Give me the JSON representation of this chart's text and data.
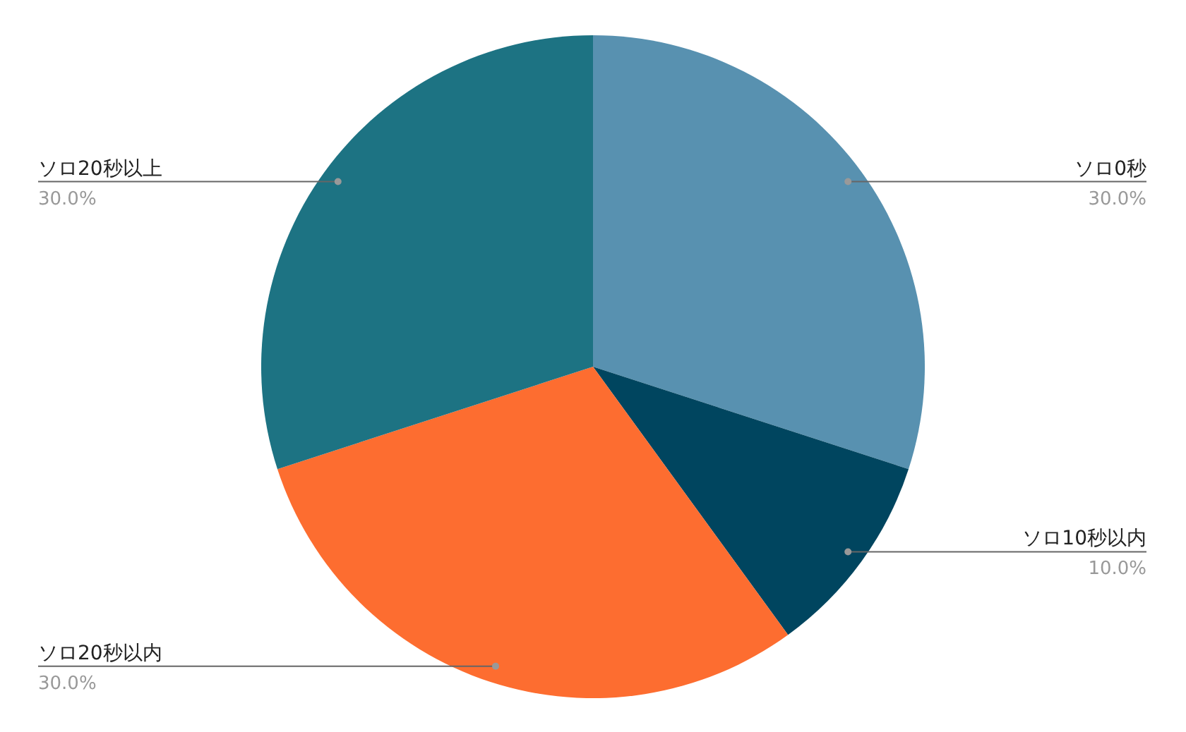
{
  "chart_data": {
    "type": "pie",
    "categories": [
      "ソロ0秒",
      "ソロ10秒以内",
      "ソロ20秒以内",
      "ソロ20秒以上"
    ],
    "values": [
      30,
      10,
      30,
      30
    ],
    "value_labels": [
      "30.0%",
      "10.0%",
      "30.0%",
      "30.0%"
    ],
    "colors": [
      "#5891b0",
      "#00455f",
      "#fd6d30",
      "#1d7383"
    ]
  }
}
